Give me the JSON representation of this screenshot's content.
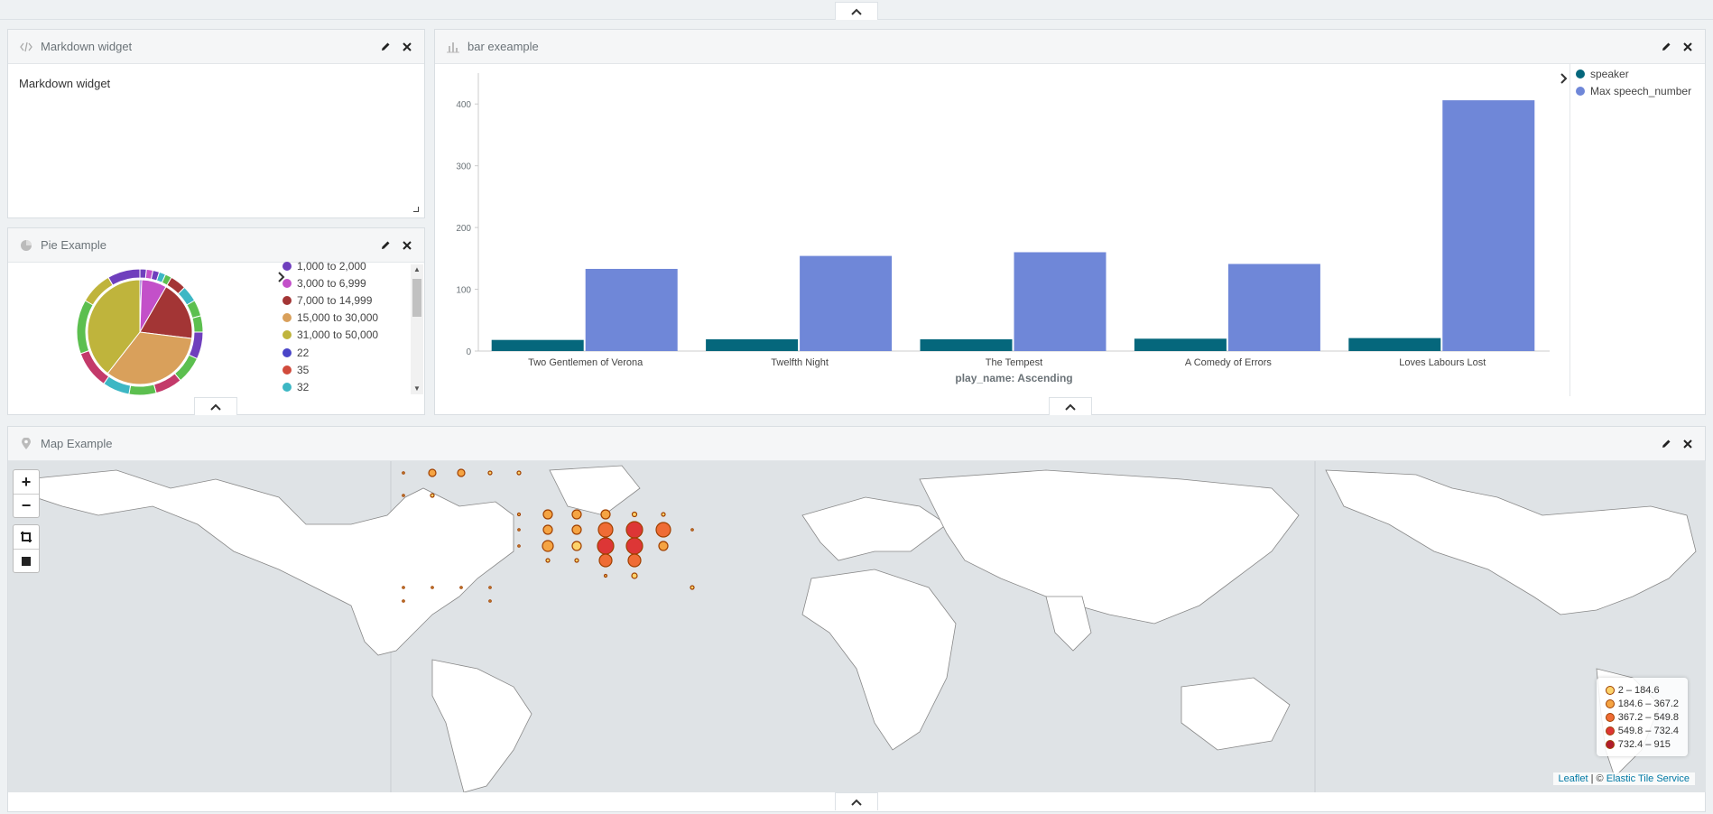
{
  "markdown_panel": {
    "title": "Markdown widget",
    "content": "Markdown widget"
  },
  "pie_panel": {
    "title": "Pie Example",
    "legend": [
      {
        "label": "1,000 to 2,000",
        "color": "#6f3fbd"
      },
      {
        "label": "3,000 to 6,999",
        "color": "#c350c9"
      },
      {
        "label": "7,000 to 14,999",
        "color": "#a33535"
      },
      {
        "label": "15,000 to 30,000",
        "color": "#d9a05b"
      },
      {
        "label": "31,000 to 50,000",
        "color": "#bfb43c"
      },
      {
        "label": "22",
        "color": "#4a45c8"
      },
      {
        "label": "35",
        "color": "#d14b3c"
      },
      {
        "label": "32",
        "color": "#3db7c4"
      }
    ]
  },
  "bar_panel": {
    "title": "bar exeample",
    "legend": [
      {
        "label": "speaker",
        "color": "#05677c"
      },
      {
        "label": "Max speech_number",
        "color": "#6f87d8"
      }
    ]
  },
  "chart_data": {
    "type": "bar",
    "categories": [
      "Two Gentlemen of Verona",
      "Twelfth Night",
      "The Tempest",
      "A Comedy of Errors",
      "Loves Labours Lost"
    ],
    "series": [
      {
        "name": "speaker",
        "values": [
          18,
          19,
          19,
          20,
          21
        ]
      },
      {
        "name": "Max speech_number",
        "values": [
          133,
          154,
          160,
          141,
          406
        ]
      }
    ],
    "xlabel": "play_name: Ascending",
    "ylabel": "",
    "ylim": [
      0,
      450
    ],
    "yticks": [
      0,
      100,
      200,
      300,
      400
    ],
    "legend_position": "right"
  },
  "map_panel": {
    "title": "Map Example",
    "zoom_in": "+",
    "zoom_out": "−",
    "legend": [
      {
        "label": "2 – 184.6",
        "color": "#fcd36b"
      },
      {
        "label": "184.6 – 367.2",
        "color": "#f5a443"
      },
      {
        "label": "367.2 – 549.8",
        "color": "#ef6c35"
      },
      {
        "label": "549.8 – 732.4",
        "color": "#dd3636"
      },
      {
        "label": "732.4 – 915",
        "color": "#b01c2e"
      }
    ],
    "attribution": {
      "leaflet": "Leaflet",
      "sep": " | © ",
      "service": "Elastic Tile Service"
    }
  },
  "colors": {
    "accent": "#6f87d8",
    "dark_series": "#05677c"
  }
}
